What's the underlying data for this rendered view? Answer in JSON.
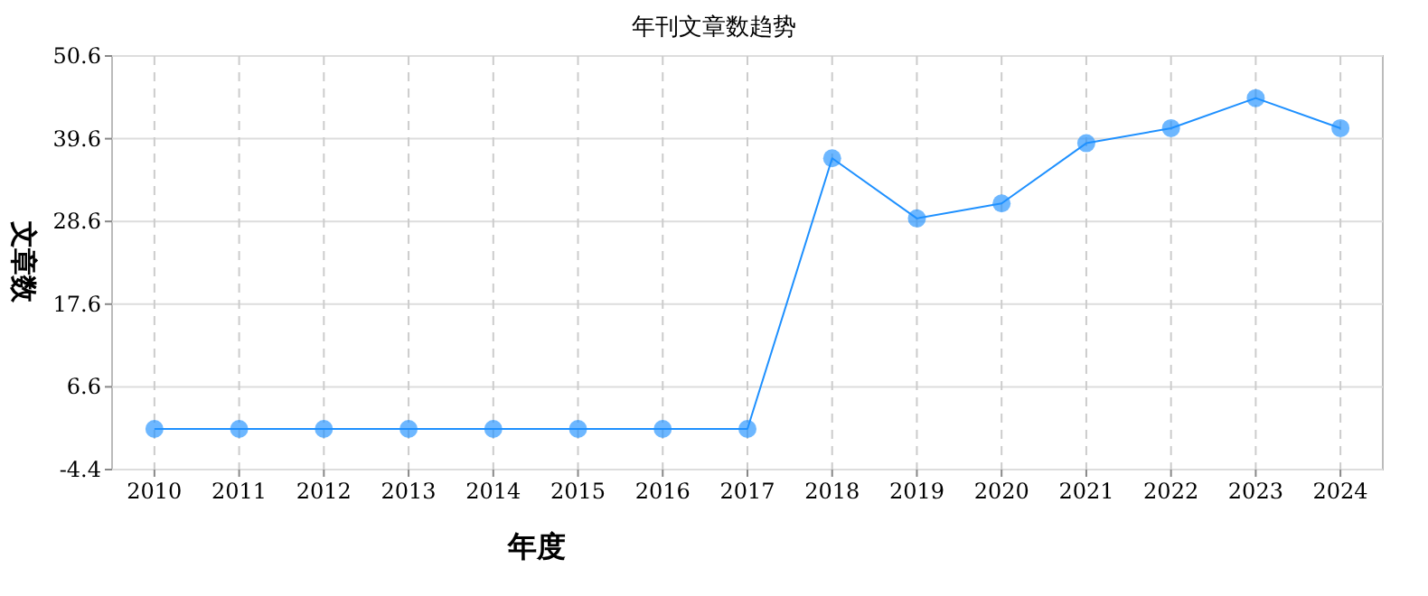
{
  "chart_data": {
    "type": "line",
    "title": "年刊文章数趋势",
    "xlabel": "年度",
    "ylabel": "文章数",
    "categories": [
      "2010",
      "2011",
      "2012",
      "2013",
      "2014",
      "2015",
      "2016",
      "2017",
      "2018",
      "2019",
      "2020",
      "2021",
      "2022",
      "2023",
      "2024"
    ],
    "series": [
      {
        "color": "#1e90ff",
        "values": [
          1,
          1,
          1,
          1,
          1,
          1,
          1,
          1,
          37,
          29,
          31,
          39,
          41,
          45,
          41
        ]
      }
    ],
    "ylim": [
      -4.4,
      50.6
    ],
    "yticks": [
      -4.4,
      6.6,
      17.6,
      28.6,
      39.6,
      50.6
    ],
    "grid": true,
    "marker": "circle"
  }
}
